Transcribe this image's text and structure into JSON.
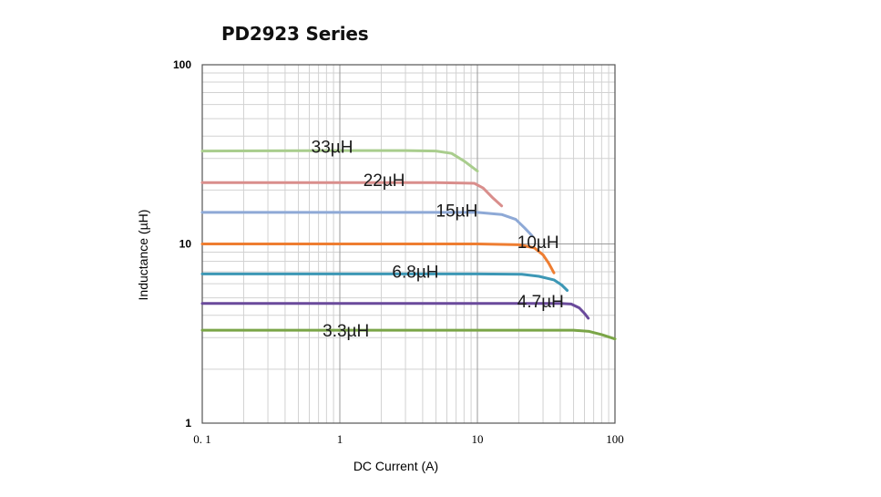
{
  "chart_data": {
    "type": "line",
    "title": "PD2923 Series",
    "xlabel": "DC Current (A)",
    "ylabel": "Inductance (µH)",
    "x_scale": "log",
    "y_scale": "log",
    "xlim": [
      0.1,
      100
    ],
    "ylim": [
      1,
      100
    ],
    "x_ticks": [
      {
        "value": 0.1,
        "label": "0. 1"
      },
      {
        "value": 1,
        "label": "1"
      },
      {
        "value": 10,
        "label": "10"
      },
      {
        "value": 100,
        "label": "100"
      }
    ],
    "y_ticks": [
      {
        "value": 1,
        "label": "1"
      },
      {
        "value": 10,
        "label": "10"
      },
      {
        "value": 100,
        "label": "100"
      }
    ],
    "grid": true,
    "series": [
      {
        "name": "33µH",
        "label": "33µH",
        "color": "#a9cd8d",
        "label_at": [
          0.62,
          33.5
        ],
        "points": [
          [
            0.1,
            33
          ],
          [
            1,
            33.2
          ],
          [
            3,
            33.2
          ],
          [
            5,
            33
          ],
          [
            6.5,
            32
          ],
          [
            8,
            29
          ],
          [
            10,
            25.5
          ]
        ]
      },
      {
        "name": "22µH",
        "label": "22µH",
        "color": "#d98e8c",
        "label_at": [
          1.48,
          21.8
        ],
        "points": [
          [
            0.1,
            22
          ],
          [
            1,
            22
          ],
          [
            5,
            22
          ],
          [
            9.5,
            21.8
          ],
          [
            11,
            20.5
          ],
          [
            13,
            18
          ],
          [
            15,
            16.3
          ]
        ]
      },
      {
        "name": "15µH",
        "label": "15µH",
        "color": "#8ea9d6",
        "label_at": [
          5,
          14.7
        ],
        "points": [
          [
            0.1,
            15
          ],
          [
            1,
            15
          ],
          [
            10,
            15
          ],
          [
            15,
            14.6
          ],
          [
            19,
            13.7
          ],
          [
            22,
            12.3
          ],
          [
            25,
            11.1
          ]
        ]
      },
      {
        "name": "10µH",
        "label": "10µH",
        "color": "#ee7d31",
        "label_at": [
          19.5,
          9.8
        ],
        "points": [
          [
            0.1,
            10
          ],
          [
            1,
            10
          ],
          [
            10,
            10
          ],
          [
            20,
            9.9
          ],
          [
            26,
            9.5
          ],
          [
            30,
            8.7
          ],
          [
            33,
            7.8
          ],
          [
            36,
            6.9
          ]
        ]
      },
      {
        "name": "6.8µH",
        "label": "6.8µH",
        "color": "#3c97b5",
        "label_at": [
          2.4,
          6.7
        ],
        "points": [
          [
            0.1,
            6.8
          ],
          [
            1,
            6.8
          ],
          [
            10,
            6.8
          ],
          [
            21,
            6.78
          ],
          [
            28,
            6.6
          ],
          [
            36,
            6.3
          ],
          [
            41,
            5.9
          ],
          [
            45,
            5.5
          ]
        ]
      },
      {
        "name": "4.7µH",
        "label": "4.7µH",
        "color": "#6a4a9b",
        "label_at": [
          19.5,
          4.6
        ],
        "points": [
          [
            0.1,
            4.65
          ],
          [
            1,
            4.65
          ],
          [
            10,
            4.66
          ],
          [
            40,
            4.66
          ],
          [
            48,
            4.62
          ],
          [
            55,
            4.4
          ],
          [
            60,
            4.1
          ],
          [
            64,
            3.85
          ]
        ]
      },
      {
        "name": "3.3µH",
        "label": "3.3µH",
        "color": "#7aa547",
        "label_at": [
          0.75,
          3.15
        ],
        "points": [
          [
            0.1,
            3.3
          ],
          [
            1,
            3.3
          ],
          [
            10,
            3.3
          ],
          [
            50,
            3.3
          ],
          [
            65,
            3.25
          ],
          [
            80,
            3.12
          ],
          [
            90,
            3.03
          ],
          [
            100,
            2.95
          ]
        ]
      }
    ]
  }
}
